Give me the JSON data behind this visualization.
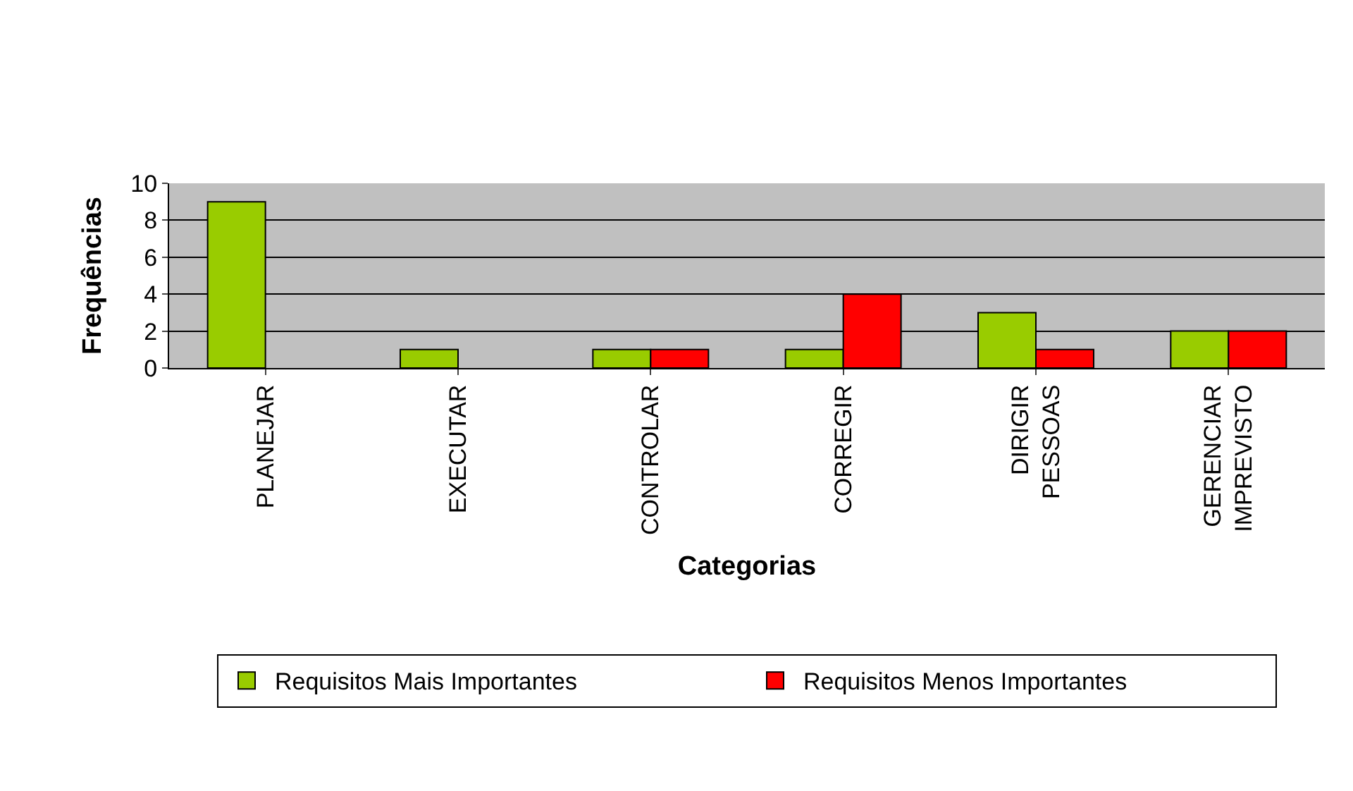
{
  "chart_data": {
    "type": "bar",
    "xlabel": "Categorias",
    "ylabel": "Frequências",
    "categories": [
      "PLANEJAR",
      "EXECUTAR",
      "CONTROLAR",
      "CORREGIR",
      "DIRIGIR PESSOAS",
      "GERENCIAR IMPREVISTO"
    ],
    "series": [
      {
        "name": "Requisitos Mais Importantes",
        "color": "#99cc00",
        "values": [
          9,
          1,
          1,
          1,
          3,
          2
        ]
      },
      {
        "name": "Requisitos Menos Importantes",
        "color": "#ff0000",
        "values": [
          null,
          null,
          1,
          4,
          1,
          2
        ]
      }
    ],
    "ylim": [
      0,
      10
    ],
    "yticks": [
      0,
      2,
      4,
      6,
      8,
      10
    ],
    "grid": "y",
    "legend": "bottom"
  }
}
